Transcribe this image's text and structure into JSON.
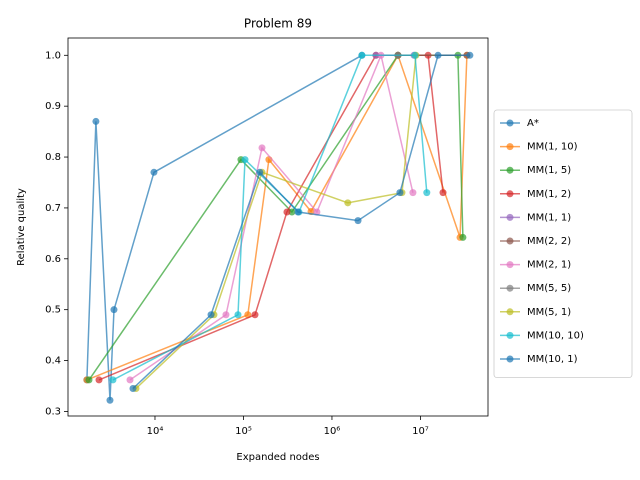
{
  "chart_data": {
    "type": "line",
    "title": "Problem 89",
    "xlabel": "Expanded nodes",
    "ylabel": "Relative quality",
    "xscale": "log",
    "xlim": [
      1040,
      58000000
    ],
    "ylim": [
      0.291,
      1.034
    ],
    "xticks": [
      {
        "value": 10000,
        "label": "10⁴"
      },
      {
        "value": 100000,
        "label": "10⁵"
      },
      {
        "value": 1000000,
        "label": "10⁶"
      },
      {
        "value": 10000000,
        "label": "10⁷"
      }
    ],
    "yticks": [
      0.3,
      0.4,
      0.5,
      0.6,
      0.7,
      0.8,
      0.9,
      {
        "value": 1,
        "label": "1.0"
      }
    ],
    "legend": "outside right",
    "series": [
      {
        "name": "A*",
        "color": "#1f77b4",
        "x": [
          1700,
          2150,
          3100,
          3440,
          9740,
          2180000
        ],
        "values": [
          0.362,
          0.87,
          0.322,
          0.5,
          0.77,
          1.0
        ]
      },
      {
        "name": "MM(1, 10)",
        "color": "#ff7f0e",
        "x": [
          1700,
          112000,
          194000,
          580000,
          5570000,
          28000000,
          33500000
        ],
        "values": [
          0.362,
          0.49,
          0.795,
          0.693,
          1.0,
          0.642,
          1.0
        ]
      },
      {
        "name": "MM(1, 5)",
        "color": "#2ca02c",
        "x": [
          1795,
          93700,
          353000,
          5570000,
          26500000,
          30200000
        ],
        "values": [
          0.362,
          0.795,
          0.692,
          1.0,
          1.0,
          0.642
        ]
      },
      {
        "name": "MM(1, 2)",
        "color": "#d62728",
        "x": [
          2330,
          135000,
          310000,
          3140000,
          12200000,
          18000000
        ],
        "values": [
          0.362,
          0.49,
          0.692,
          1.0,
          1.0,
          0.73
        ]
      },
      {
        "name": "MM(1, 1)",
        "color": "#9467bd",
        "x": [
          3140000,
          8450000
        ],
        "values": [
          1.0,
          1.0
        ]
      },
      {
        "name": "MM(2, 2)",
        "color": "#8c564b",
        "x": [
          5570000,
          33500000
        ],
        "values": [
          1.0,
          1.0
        ]
      },
      {
        "name": "MM(2, 1)",
        "color": "#e377c2",
        "x": [
          5220,
          63400,
          162000,
          676000,
          3580000,
          8220000
        ],
        "values": [
          0.362,
          0.49,
          0.818,
          0.692,
          1.0,
          0.73
        ]
      },
      {
        "name": "MM(5, 5)",
        "color": "#7f7f7f",
        "x": [
          5570000
        ],
        "values": [
          1.0
        ]
      },
      {
        "name": "MM(5, 1)",
        "color": "#bcbd22",
        "x": [
          6100,
          46400,
          162000,
          1510000,
          6180000,
          8900000
        ],
        "values": [
          0.345,
          0.49,
          0.77,
          0.71,
          0.73,
          1.0
        ]
      },
      {
        "name": "MM(10, 10)",
        "color": "#17becf",
        "x": [
          3350,
          86700,
          104000,
          424000,
          2180000,
          8670000,
          11800000
        ],
        "values": [
          0.362,
          0.49,
          0.795,
          0.692,
          1.0,
          1.0,
          0.73
        ]
      },
      {
        "name": "MM(10, 1)",
        "color": "#1f77b4",
        "x": [
          5640,
          43000,
          153000,
          413000,
          1970000,
          5860000,
          15800000,
          36200000
        ],
        "values": [
          0.345,
          0.49,
          0.77,
          0.692,
          0.675,
          0.73,
          1.0,
          1.0
        ]
      }
    ]
  }
}
